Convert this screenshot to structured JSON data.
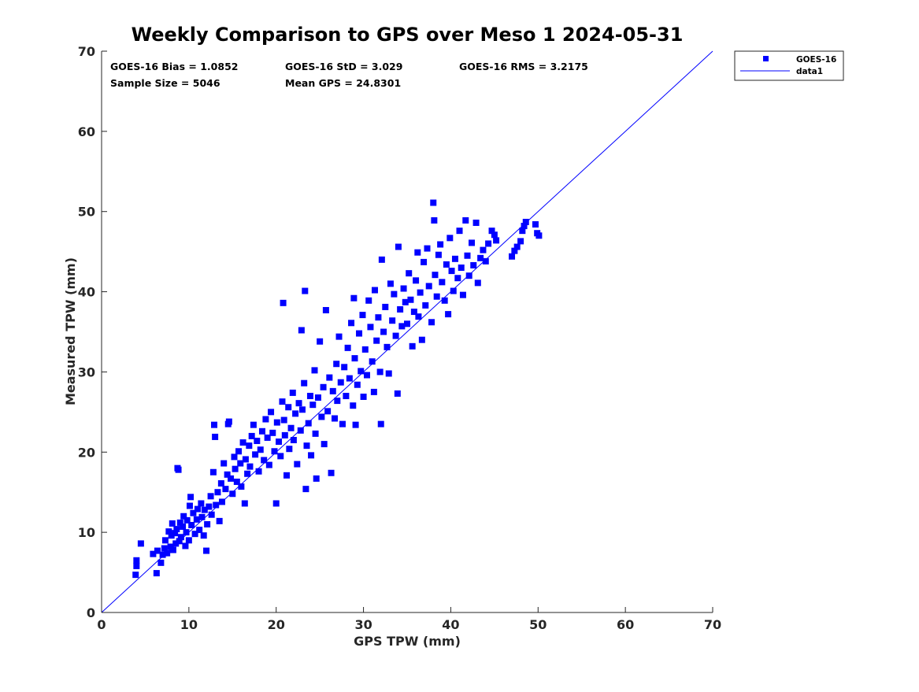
{
  "chart_data": {
    "type": "scatter",
    "title": "Weekly Comparison to GPS over Meso 1 2024-05-31",
    "xlabel": "GPS TPW (mm)",
    "ylabel": "Measured TPW (mm)",
    "xlim": [
      0,
      70
    ],
    "ylim": [
      0,
      70
    ],
    "xticks": [
      "0",
      "10",
      "20",
      "30",
      "40",
      "50",
      "60",
      "70"
    ],
    "yticks": [
      "0",
      "10",
      "20",
      "30",
      "40",
      "50",
      "60",
      "70"
    ],
    "grid": false,
    "legend_position": "outside-top-right",
    "stats": [
      "GOES-16 Bias = 1.0852",
      "GOES-16 StD = 3.029",
      "GOES-16 RMS = 3.2175",
      "Sample Size = 5046",
      "Mean GPS = 24.8301"
    ],
    "series": [
      {
        "name": "GOES-16",
        "kind": "scatter",
        "marker": "square",
        "color": "#0000ff",
        "points": [
          [
            3.9,
            4.7
          ],
          [
            4.0,
            6.5
          ],
          [
            4.0,
            5.8
          ],
          [
            4.5,
            8.6
          ],
          [
            5.9,
            7.3
          ],
          [
            6.3,
            4.9
          ],
          [
            6.4,
            7.7
          ],
          [
            6.8,
            6.2
          ],
          [
            7.0,
            7.2
          ],
          [
            7.2,
            8.0
          ],
          [
            7.3,
            9.0
          ],
          [
            7.5,
            7.4
          ],
          [
            7.7,
            10.1
          ],
          [
            7.9,
            8.2
          ],
          [
            8.0,
            9.6
          ],
          [
            8.1,
            11.1
          ],
          [
            8.2,
            7.8
          ],
          [
            8.4,
            9.9
          ],
          [
            8.5,
            8.6
          ],
          [
            8.6,
            10.4
          ],
          [
            8.7,
            18.0
          ],
          [
            8.8,
            17.8
          ],
          [
            8.9,
            8.9
          ],
          [
            9.0,
            11.2
          ],
          [
            9.1,
            9.4
          ],
          [
            9.3,
            10.7
          ],
          [
            9.4,
            12.0
          ],
          [
            9.6,
            8.3
          ],
          [
            9.7,
            10.0
          ],
          [
            9.8,
            11.5
          ],
          [
            10.0,
            9.0
          ],
          [
            10.1,
            13.3
          ],
          [
            10.2,
            14.4
          ],
          [
            10.3,
            10.9
          ],
          [
            10.5,
            12.4
          ],
          [
            10.7,
            9.8
          ],
          [
            10.9,
            11.6
          ],
          [
            11.0,
            12.9
          ],
          [
            11.2,
            10.3
          ],
          [
            11.4,
            13.6
          ],
          [
            11.5,
            11.9
          ],
          [
            11.7,
            9.6
          ],
          [
            11.8,
            12.8
          ],
          [
            12.0,
            7.7
          ],
          [
            12.1,
            11.0
          ],
          [
            12.3,
            13.2
          ],
          [
            12.5,
            14.5
          ],
          [
            12.6,
            12.2
          ],
          [
            12.8,
            17.5
          ],
          [
            12.9,
            23.4
          ],
          [
            13.0,
            21.9
          ],
          [
            13.1,
            13.4
          ],
          [
            13.3,
            15.0
          ],
          [
            13.5,
            11.4
          ],
          [
            13.7,
            16.1
          ],
          [
            13.8,
            13.8
          ],
          [
            14.0,
            18.6
          ],
          [
            14.2,
            15.4
          ],
          [
            14.4,
            17.2
          ],
          [
            14.5,
            23.5
          ],
          [
            14.6,
            23.8
          ],
          [
            14.8,
            16.7
          ],
          [
            15.0,
            14.8
          ],
          [
            15.2,
            19.4
          ],
          [
            15.3,
            17.9
          ],
          [
            15.5,
            16.3
          ],
          [
            15.7,
            20.1
          ],
          [
            15.9,
            18.6
          ],
          [
            16.0,
            15.7
          ],
          [
            16.2,
            21.2
          ],
          [
            16.4,
            13.6
          ],
          [
            16.5,
            19.1
          ],
          [
            16.7,
            17.3
          ],
          [
            16.9,
            20.8
          ],
          [
            17.0,
            18.2
          ],
          [
            17.2,
            22.0
          ],
          [
            17.4,
            23.4
          ],
          [
            17.6,
            19.7
          ],
          [
            17.8,
            21.4
          ],
          [
            18.0,
            17.6
          ],
          [
            18.2,
            20.3
          ],
          [
            18.4,
            22.6
          ],
          [
            18.6,
            19.0
          ],
          [
            18.8,
            24.1
          ],
          [
            19.0,
            21.8
          ],
          [
            19.2,
            18.4
          ],
          [
            19.4,
            25.0
          ],
          [
            19.6,
            22.4
          ],
          [
            19.8,
            20.1
          ],
          [
            20.0,
            13.6
          ],
          [
            20.1,
            23.7
          ],
          [
            20.3,
            21.3
          ],
          [
            20.5,
            19.5
          ],
          [
            20.7,
            26.3
          ],
          [
            20.8,
            38.6
          ],
          [
            20.9,
            24.0
          ],
          [
            21.0,
            22.1
          ],
          [
            21.2,
            17.1
          ],
          [
            21.4,
            25.6
          ],
          [
            21.5,
            20.4
          ],
          [
            21.7,
            23.0
          ],
          [
            21.9,
            27.4
          ],
          [
            22.0,
            21.5
          ],
          [
            22.2,
            24.8
          ],
          [
            22.4,
            18.5
          ],
          [
            22.6,
            26.1
          ],
          [
            22.8,
            22.7
          ],
          [
            22.9,
            35.2
          ],
          [
            23.0,
            25.3
          ],
          [
            23.2,
            28.6
          ],
          [
            23.3,
            40.1
          ],
          [
            23.4,
            15.4
          ],
          [
            23.5,
            20.8
          ],
          [
            23.7,
            23.6
          ],
          [
            23.9,
            27.0
          ],
          [
            24.0,
            19.6
          ],
          [
            24.2,
            25.9
          ],
          [
            24.4,
            30.2
          ],
          [
            24.5,
            22.3
          ],
          [
            24.6,
            16.7
          ],
          [
            24.8,
            26.8
          ],
          [
            25.0,
            33.8
          ],
          [
            25.2,
            24.4
          ],
          [
            25.4,
            28.1
          ],
          [
            25.5,
            21.0
          ],
          [
            25.7,
            37.7
          ],
          [
            25.9,
            25.1
          ],
          [
            26.1,
            29.3
          ],
          [
            26.3,
            17.4
          ],
          [
            26.5,
            27.6
          ],
          [
            26.7,
            24.2
          ],
          [
            26.9,
            31.0
          ],
          [
            27.0,
            26.4
          ],
          [
            27.2,
            34.4
          ],
          [
            27.4,
            28.7
          ],
          [
            27.6,
            23.5
          ],
          [
            27.8,
            30.6
          ],
          [
            28.0,
            27.0
          ],
          [
            28.2,
            33.0
          ],
          [
            28.4,
            29.2
          ],
          [
            28.6,
            36.1
          ],
          [
            28.8,
            25.8
          ],
          [
            28.9,
            39.2
          ],
          [
            29.0,
            31.7
          ],
          [
            29.1,
            23.4
          ],
          [
            29.3,
            28.4
          ],
          [
            29.5,
            34.8
          ],
          [
            29.7,
            30.1
          ],
          [
            29.9,
            37.1
          ],
          [
            30.0,
            26.9
          ],
          [
            30.2,
            32.8
          ],
          [
            30.4,
            29.6
          ],
          [
            30.6,
            38.9
          ],
          [
            30.8,
            35.6
          ],
          [
            31.0,
            31.3
          ],
          [
            31.2,
            27.5
          ],
          [
            31.3,
            40.2
          ],
          [
            31.5,
            33.9
          ],
          [
            31.7,
            36.8
          ],
          [
            31.9,
            30.0
          ],
          [
            32.0,
            23.5
          ],
          [
            32.1,
            44.0
          ],
          [
            32.3,
            35.0
          ],
          [
            32.5,
            38.1
          ],
          [
            32.7,
            33.1
          ],
          [
            32.9,
            29.8
          ],
          [
            33.1,
            41.0
          ],
          [
            33.3,
            36.4
          ],
          [
            33.5,
            39.7
          ],
          [
            33.7,
            34.5
          ],
          [
            33.9,
            27.3
          ],
          [
            34.0,
            45.6
          ],
          [
            34.2,
            37.8
          ],
          [
            34.4,
            35.7
          ],
          [
            34.6,
            40.4
          ],
          [
            34.8,
            38.7
          ],
          [
            35.0,
            36.0
          ],
          [
            35.2,
            42.3
          ],
          [
            35.4,
            39.0
          ],
          [
            35.6,
            33.2
          ],
          [
            35.8,
            37.5
          ],
          [
            36.0,
            41.4
          ],
          [
            36.2,
            44.9
          ],
          [
            36.3,
            36.9
          ],
          [
            36.5,
            39.9
          ],
          [
            36.7,
            34.0
          ],
          [
            36.9,
            43.7
          ],
          [
            37.1,
            38.3
          ],
          [
            37.3,
            45.4
          ],
          [
            37.5,
            40.7
          ],
          [
            37.8,
            36.2
          ],
          [
            38.0,
            51.1
          ],
          [
            38.1,
            48.9
          ],
          [
            38.2,
            42.1
          ],
          [
            38.4,
            39.4
          ],
          [
            38.6,
            44.6
          ],
          [
            38.8,
            45.9
          ],
          [
            39.0,
            41.2
          ],
          [
            39.3,
            38.9
          ],
          [
            39.5,
            43.4
          ],
          [
            39.7,
            37.2
          ],
          [
            39.9,
            46.7
          ],
          [
            40.1,
            42.6
          ],
          [
            40.3,
            40.1
          ],
          [
            40.5,
            44.1
          ],
          [
            40.8,
            41.7
          ],
          [
            41.0,
            47.6
          ],
          [
            41.2,
            43.0
          ],
          [
            41.4,
            39.6
          ],
          [
            41.7,
            48.9
          ],
          [
            41.9,
            44.5
          ],
          [
            42.1,
            42.0
          ],
          [
            42.4,
            46.1
          ],
          [
            42.6,
            43.3
          ],
          [
            42.9,
            48.6
          ],
          [
            43.1,
            41.1
          ],
          [
            43.4,
            44.2
          ],
          [
            43.7,
            45.2
          ],
          [
            44.0,
            43.8
          ],
          [
            44.3,
            46.0
          ],
          [
            44.7,
            47.6
          ],
          [
            45.0,
            47.1
          ],
          [
            45.2,
            46.4
          ],
          [
            47.0,
            44.4
          ],
          [
            47.3,
            45.1
          ],
          [
            47.6,
            45.6
          ],
          [
            48.0,
            46.3
          ],
          [
            48.2,
            47.6
          ],
          [
            48.4,
            48.2
          ],
          [
            48.6,
            48.7
          ],
          [
            49.7,
            48.4
          ],
          [
            49.9,
            47.3
          ],
          [
            50.1,
            47.0
          ]
        ]
      },
      {
        "name": "data1",
        "kind": "line",
        "color": "#0000ff",
        "x": [
          0,
          70
        ],
        "y": [
          0,
          70
        ]
      }
    ]
  }
}
